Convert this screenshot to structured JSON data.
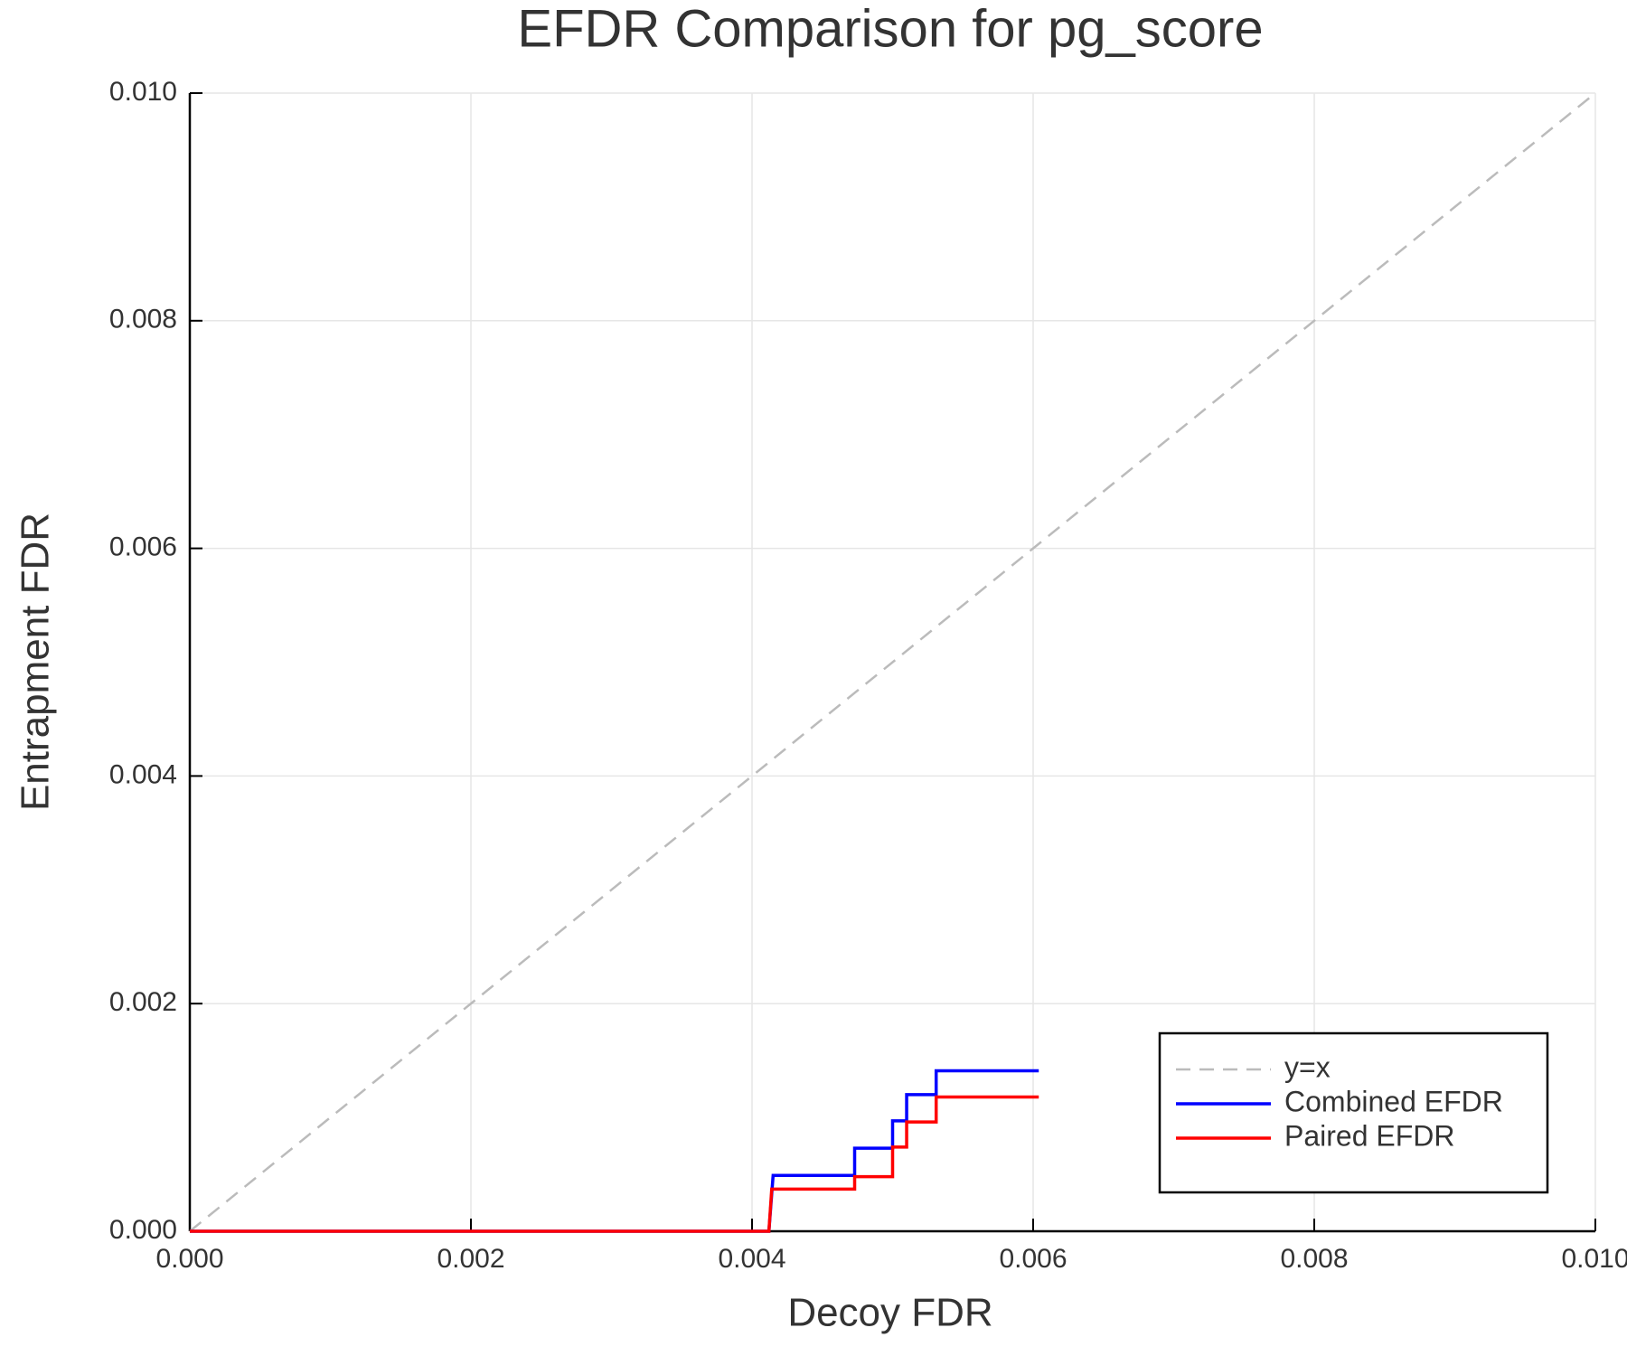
{
  "chart_data": {
    "type": "line",
    "title": "EFDR Comparison for pg_score",
    "x_label": "Decoy FDR",
    "y_label": "Entrapment FDR",
    "xlim": [
      0,
      0.01
    ],
    "ylim": [
      0,
      0.01
    ],
    "xticks": [
      {
        "value": 0,
        "label": "0.000"
      },
      {
        "value": 0.002,
        "label": "0.002"
      },
      {
        "value": 0.004,
        "label": "0.004"
      },
      {
        "value": 0.006,
        "label": "0.006"
      },
      {
        "value": 0.008,
        "label": "0.008"
      },
      {
        "value": 0.01,
        "label": "0.010"
      }
    ],
    "yticks": [
      {
        "value": 0,
        "label": "0.000"
      },
      {
        "value": 0.002,
        "label": "0.002"
      },
      {
        "value": 0.004,
        "label": "0.004"
      },
      {
        "value": 0.006,
        "label": "0.006"
      },
      {
        "value": 0.008,
        "label": "0.008"
      },
      {
        "value": 0.01,
        "label": "0.010"
      }
    ],
    "grid": true,
    "legend": "bottom right",
    "series": [
      {
        "name": "y=x",
        "color": "#bbbbbb",
        "style": "dashed",
        "x": [
          0,
          0.01
        ],
        "values": [
          0,
          0.01
        ]
      },
      {
        "name": "Combined EFDR",
        "color": "#0000ff",
        "style": "solid",
        "x": [
          0,
          0.00412,
          0.00415,
          0.00473,
          0.00473,
          0.005,
          0.005,
          0.0051,
          0.0051,
          0.00531,
          0.00531,
          0.00604
        ],
        "values": [
          0,
          0,
          0.00049,
          0.00049,
          0.00073,
          0.00073,
          0.00097,
          0.00097,
          0.0012,
          0.0012,
          0.00141,
          0.00141
        ]
      },
      {
        "name": "Paired EFDR",
        "color": "#ff0000",
        "style": "solid",
        "x": [
          0,
          0.00412,
          0.00414,
          0.00473,
          0.00473,
          0.005,
          0.005,
          0.0051,
          0.0051,
          0.00531,
          0.00531,
          0.00604
        ],
        "values": [
          0,
          0,
          0.00037,
          0.00037,
          0.00048,
          0.00048,
          0.00074,
          0.00074,
          0.00096,
          0.00096,
          0.00118,
          0.00118
        ]
      }
    ]
  }
}
